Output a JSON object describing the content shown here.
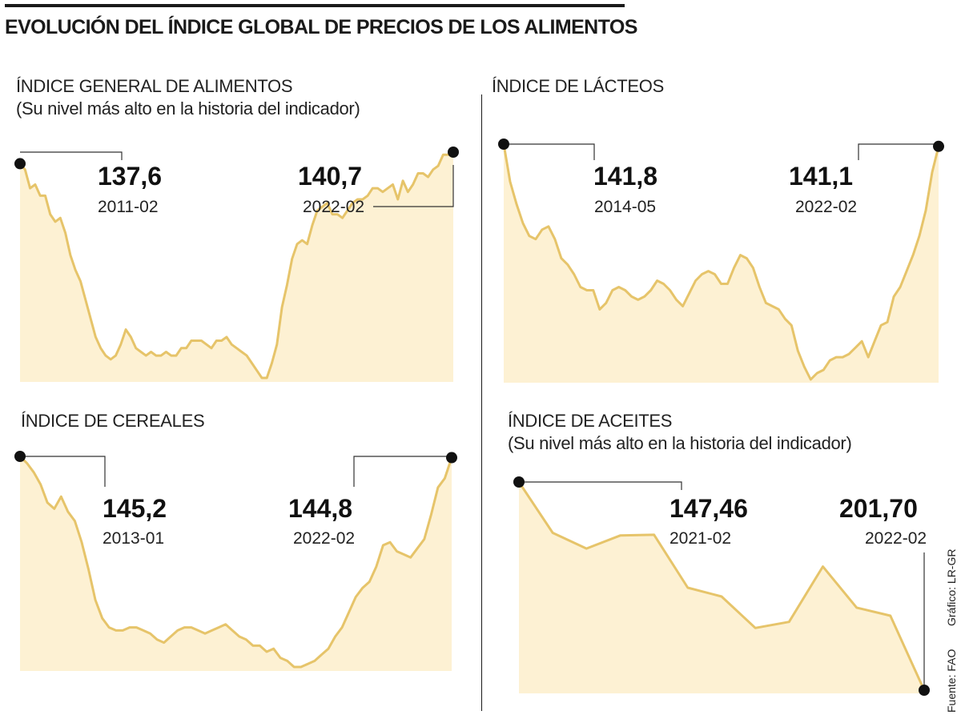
{
  "title": "EVOLUCIÓN DEL ÍNDICE GLOBAL DE PRECIOS DE LOS ALIMENTOS",
  "colors": {
    "line": "#e6c46a",
    "fill": "#fdf1d3",
    "marker": "#111111",
    "callout": "#333333"
  },
  "source": "Fuente: FAO",
  "credit": "Gráfico: LR-GR",
  "chart_data": [
    {
      "type": "area",
      "title": "ÍNDICE GENERAL DE ALIMENTOS",
      "subtitle": "(Su nivel más alto en la historia del indicador)",
      "xlabel": "",
      "ylabel": "",
      "x_range": [
        "2011-02",
        "2022-02"
      ],
      "legend": "none",
      "grid": false,
      "start": {
        "value": "137,6",
        "date": "2011-02"
      },
      "end": {
        "value": "140,7",
        "date": "2022-02"
      },
      "values": [
        137.6,
        136,
        131,
        132,
        129,
        129,
        124,
        122,
        123,
        119,
        113,
        109,
        106,
        101,
        96,
        91,
        88,
        86,
        85,
        86,
        89,
        93,
        91,
        88,
        87,
        86,
        87,
        86,
        86,
        87,
        86,
        86,
        88,
        88,
        90,
        90,
        90,
        89,
        88,
        90,
        90,
        91,
        89,
        88,
        87,
        86,
        84,
        82,
        80,
        80,
        84,
        89,
        99,
        105,
        112,
        116,
        117,
        116,
        121,
        125,
        126,
        127,
        124,
        124,
        123,
        125,
        127,
        128,
        128,
        129,
        131,
        131,
        130,
        131,
        132,
        128,
        133,
        130,
        132,
        135,
        135,
        134,
        136,
        137,
        140,
        140,
        140.7
      ]
    },
    {
      "type": "area",
      "title": "ÍNDICE DE LÁCTEOS",
      "subtitle": "",
      "xlabel": "",
      "ylabel": "",
      "x_range": [
        "2014-05",
        "2022-02"
      ],
      "legend": "none",
      "grid": false,
      "start": {
        "value": "141,8",
        "date": "2014-05"
      },
      "end": {
        "value": "141,1",
        "date": "2022-02"
      },
      "values": [
        141.8,
        130,
        123,
        117,
        113,
        112,
        115,
        116,
        112,
        106,
        104,
        101,
        97,
        96,
        96,
        90,
        92,
        96,
        97,
        96,
        94,
        93,
        94,
        96,
        99,
        98,
        96,
        93,
        91,
        95,
        99,
        101,
        102,
        101,
        98,
        98,
        103,
        107,
        106,
        103,
        97,
        92,
        91,
        90,
        87,
        85,
        77,
        72,
        68,
        70,
        71,
        74,
        75,
        75,
        76,
        78,
        80,
        75,
        80,
        85,
        86,
        94,
        97,
        102,
        107,
        113,
        121,
        133,
        141.1
      ]
    },
    {
      "type": "area",
      "title": "ÍNDICE DE CEREALES",
      "subtitle": "",
      "xlabel": "",
      "ylabel": "",
      "x_range": [
        "2013-01",
        "2022-02"
      ],
      "legend": "none",
      "grid": false,
      "start": {
        "value": "145,2",
        "date": "2013-01"
      },
      "end": {
        "value": "144,8",
        "date": "2022-02"
      },
      "values": [
        145.2,
        143,
        140,
        136,
        130,
        128,
        132,
        127,
        124,
        117,
        108,
        98,
        92,
        89,
        88,
        88,
        89,
        89,
        88,
        87,
        85,
        84,
        86,
        88,
        89,
        89,
        88,
        87,
        88,
        89,
        90,
        88,
        86,
        85,
        83,
        83,
        81,
        82,
        79,
        78,
        76,
        76,
        77,
        78,
        80,
        82,
        86,
        89,
        94,
        99,
        102,
        104,
        109,
        116,
        117,
        114,
        113,
        112,
        115,
        118,
        126,
        135,
        138,
        144.8
      ]
    },
    {
      "type": "area",
      "title": "ÍNDICE DE ACEITES",
      "subtitle": "(Su nivel más alto en la historia del indicador)",
      "xlabel": "",
      "ylabel": "",
      "x_range": [
        "2021-02",
        "2022-02"
      ],
      "legend": "none",
      "grid": false,
      "start": {
        "value": "147,46",
        "date": "2021-02"
      },
      "end": {
        "value": "201,70",
        "date": "2022-02"
      },
      "note": "Plotted on an inverted vertical scale: 147,46 drawn at top, 201,70 at bottom.",
      "values": [
        147.46,
        160.7,
        164.8,
        161.4,
        161.2,
        175.0,
        177.3,
        185.5,
        183.9,
        169.5,
        180.2,
        182.3,
        201.7
      ]
    }
  ]
}
